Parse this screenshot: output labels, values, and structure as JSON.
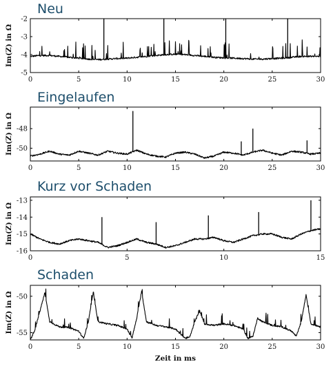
{
  "chart_data": [
    {
      "type": "line",
      "title": "Neu",
      "ylabel": "Im(Z) in Ω",
      "xlim": [
        0,
        30
      ],
      "ylim": [
        -5,
        -2
      ],
      "xticks": [
        "0",
        "5",
        "10",
        "15",
        "20",
        "25",
        "30"
      ],
      "yticks": [
        "-2",
        "-3",
        "-4",
        "-5"
      ],
      "series": [
        {
          "x": [
            0,
            1,
            2,
            3,
            4,
            5,
            6,
            7,
            8,
            9,
            10,
            11,
            12,
            13,
            14,
            15,
            16,
            17,
            18,
            19,
            20,
            21,
            22,
            23,
            24,
            25,
            26,
            27,
            28,
            29,
            30
          ],
          "values": [
            -4.1,
            -4.05,
            -4.05,
            -4.1,
            -4.15,
            -4.2,
            -4.25,
            -4.28,
            -4.25,
            -4.22,
            -4.2,
            -4.15,
            -4.1,
            -4.05,
            -4.0,
            -3.98,
            -4.0,
            -4.05,
            -4.1,
            -4.15,
            -4.18,
            -4.2,
            -4.22,
            -4.25,
            -4.25,
            -4.22,
            -4.2,
            -4.15,
            -4.1,
            -4.1,
            -4.1
          ],
          "peaks_x": [
            7.6,
            13.8,
            20.2,
            26.6
          ],
          "peaks_y": [
            -2.0,
            -2.0,
            -2.0,
            -2.0
          ]
        }
      ]
    },
    {
      "type": "line",
      "title": "Eingelaufen",
      "ylabel": "Im(Z) in Ω",
      "xlim": [
        0,
        30
      ],
      "ylim": [
        -51.3,
        -45.8
      ],
      "xticks": [
        "0",
        "5",
        "10",
        "15",
        "20",
        "25",
        "30"
      ],
      "yticks": [
        "-48",
        "-50"
      ],
      "series": [
        {
          "x": [
            0,
            1,
            2,
            3,
            4,
            5,
            6,
            7,
            8,
            9,
            10,
            11,
            12,
            13,
            14,
            15,
            16,
            17,
            18,
            19,
            20,
            21,
            22,
            23,
            24,
            25,
            26,
            27,
            28,
            29,
            30
          ],
          "values": [
            -50.8,
            -50.6,
            -50.3,
            -50.6,
            -50.7,
            -50.3,
            -50.5,
            -50.7,
            -50.3,
            -50.5,
            -50.6,
            -50.2,
            -50.6,
            -50.8,
            -50.9,
            -50.5,
            -50.4,
            -50.6,
            -51.0,
            -50.8,
            -50.4,
            -50.5,
            -50.7,
            -50.4,
            -50.2,
            -50.5,
            -50.7,
            -50.3,
            -50.4,
            -50.6,
            -50.5
          ],
          "peaks_x": [
            10.6,
            21.8,
            23.0,
            28.6
          ],
          "peaks_y": [
            -46.2,
            -49.3,
            -48.0,
            -49.2
          ]
        }
      ]
    },
    {
      "type": "line",
      "title": "Kurz vor Schaden",
      "ylabel": "Im(Z) in Ω",
      "xlim": [
        0,
        15
      ],
      "ylim": [
        -16,
        -12.8
      ],
      "xticks": [
        "0",
        "5",
        "10",
        "15"
      ],
      "yticks": [
        "-13",
        "-14",
        "-15",
        "-16"
      ],
      "series": [
        {
          "x": [
            0,
            0.5,
            1,
            1.5,
            2,
            2.5,
            3,
            3.5,
            4,
            4.5,
            5,
            5.5,
            6,
            6.5,
            7,
            7.5,
            8,
            8.5,
            9,
            9.5,
            10,
            10.5,
            11,
            11.5,
            12,
            12.5,
            13,
            13.5,
            14,
            14.5,
            15
          ],
          "values": [
            -15.0,
            -15.3,
            -15.5,
            -15.6,
            -15.4,
            -15.3,
            -15.4,
            -15.5,
            -15.8,
            -15.7,
            -15.5,
            -15.3,
            -15.5,
            -15.6,
            -15.8,
            -15.7,
            -15.5,
            -15.3,
            -15.3,
            -15.2,
            -15.4,
            -15.5,
            -15.3,
            -15.1,
            -15.0,
            -15.0,
            -15.2,
            -15.3,
            -15.0,
            -14.8,
            -14.7
          ],
          "peaks_x": [
            3.7,
            6.5,
            9.2,
            11.8,
            14.5
          ],
          "peaks_y": [
            -14.0,
            -14.3,
            -13.9,
            -13.7,
            -13.0
          ]
        }
      ]
    },
    {
      "type": "line",
      "title": "Schaden",
      "ylabel": "Im(Z) in Ω",
      "xlabel": "Zeit in ms",
      "xlim": [
        0,
        30
      ],
      "ylim": [
        -56,
        -48.5
      ],
      "xticks": [
        "0",
        "5",
        "10",
        "15",
        "20",
        "25",
        "30"
      ],
      "yticks": [
        "-50",
        "-55"
      ],
      "series": [
        {
          "x": [
            0,
            0.5,
            1,
            1.5,
            2,
            3,
            4,
            5,
            5.5,
            6,
            6.5,
            7,
            8,
            9,
            10,
            10.5,
            11,
            11.5,
            12,
            13,
            14,
            15,
            16,
            16.5,
            17,
            17.5,
            18,
            19,
            20,
            21,
            22,
            22.5,
            23,
            23.5,
            24,
            25,
            26,
            27,
            27.5,
            28,
            28.5,
            29,
            30
          ],
          "values": [
            -56.0,
            -54.5,
            -52.0,
            -49.5,
            -53.5,
            -54.2,
            -54.3,
            -54.8,
            -55.8,
            -53.5,
            -49.5,
            -53.5,
            -53.8,
            -54.0,
            -54.5,
            -55.8,
            -53.0,
            -49.3,
            -53.5,
            -54.0,
            -54.2,
            -54.5,
            -55.8,
            -55.5,
            -53.5,
            -52.0,
            -53.8,
            -54.0,
            -53.8,
            -54.0,
            -54.5,
            -55.8,
            -55.5,
            -53.0,
            -53.5,
            -54.0,
            -54.2,
            -54.8,
            -55.5,
            -53.5,
            -49.8,
            -53.8,
            -54.2
          ]
        }
      ]
    }
  ]
}
